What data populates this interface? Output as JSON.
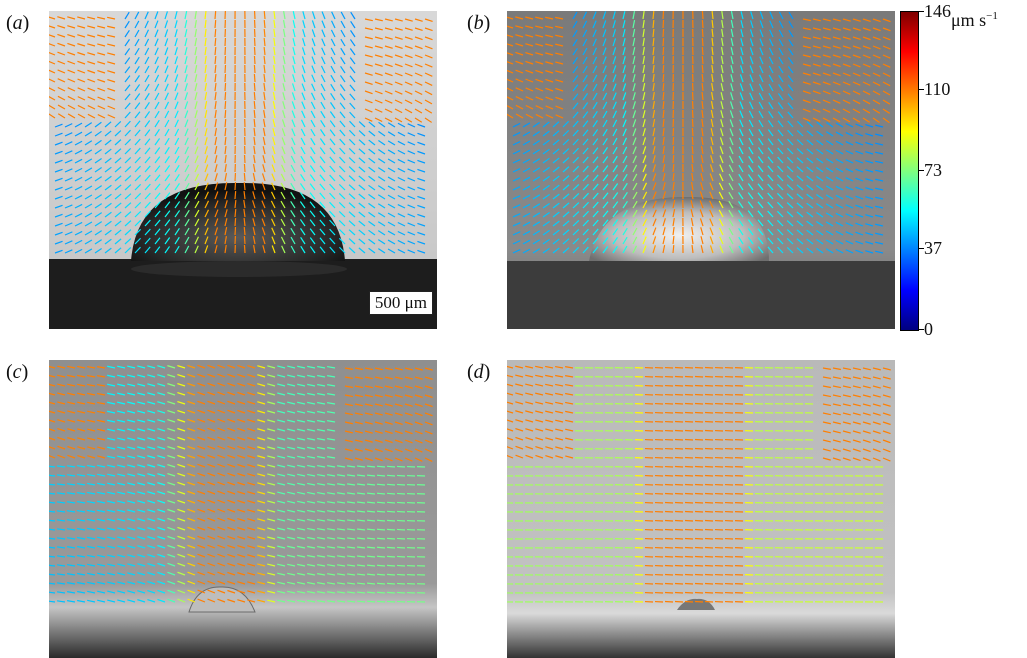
{
  "panels": [
    {
      "label": "(a)",
      "letter": "a"
    },
    {
      "label": "(b)",
      "letter": "b"
    },
    {
      "label": "(c)",
      "letter": "c"
    },
    {
      "label": "(d)",
      "letter": "d"
    }
  ],
  "scale_bar": "500 μm",
  "colorbar": {
    "colors": [
      "#00007f",
      "#0000ff",
      "#007fff",
      "#00ffff",
      "#7fff7f",
      "#ffff00",
      "#ff7f00",
      "#ff0000",
      "#7f0000"
    ],
    "ticks": [
      {
        "value": 146,
        "label": "146"
      },
      {
        "value": 110,
        "label": "110"
      },
      {
        "value": 73,
        "label": "73"
      },
      {
        "value": 37,
        "label": "37"
      },
      {
        "value": 0,
        "label": "0"
      }
    ],
    "unit": "μm s",
    "unit_exponent": "−1"
  }
}
